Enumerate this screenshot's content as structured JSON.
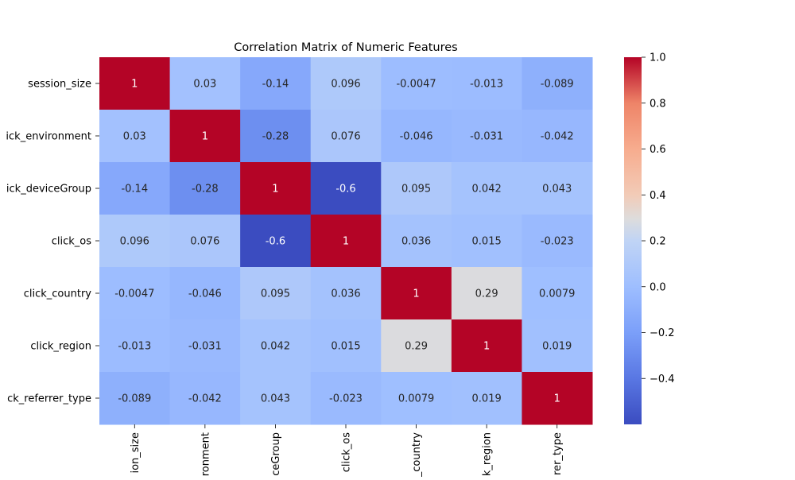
{
  "chart_data": {
    "type": "heatmap",
    "title": "Correlation Matrix of Numeric Features",
    "xlabel": "",
    "ylabel": "",
    "row_tick_labels": [
      "session_size",
      "ick_environment",
      "ick_deviceGroup",
      "click_os",
      "click_country",
      "click_region",
      "ck_referrer_type"
    ],
    "column_tick_labels": [
      "ion_size",
      "ronment",
      "ceGroup",
      "click_os",
      "_country",
      "k_region",
      "rer_type"
    ],
    "values": [
      [
        1,
        0.03,
        -0.14,
        0.096,
        -0.0047,
        -0.013,
        -0.089
      ],
      [
        0.03,
        1,
        -0.28,
        0.076,
        -0.046,
        -0.031,
        -0.042
      ],
      [
        -0.14,
        -0.28,
        1,
        -0.6,
        0.095,
        0.042,
        0.043
      ],
      [
        0.096,
        0.076,
        -0.6,
        1,
        0.036,
        0.015,
        -0.023
      ],
      [
        -0.0047,
        -0.046,
        0.095,
        0.036,
        1,
        0.29,
        0.0079
      ],
      [
        -0.013,
        -0.031,
        0.042,
        0.015,
        0.29,
        1,
        0.019
      ],
      [
        -0.089,
        -0.042,
        0.043,
        -0.023,
        0.0079,
        0.019,
        1
      ]
    ],
    "annotation_labels": [
      [
        "1",
        "0.03",
        "-0.14",
        "0.096",
        "-0.0047",
        "-0.013",
        "-0.089"
      ],
      [
        "0.03",
        "1",
        "-0.28",
        "0.076",
        "-0.046",
        "-0.031",
        "-0.042"
      ],
      [
        "-0.14",
        "-0.28",
        "1",
        "-0.6",
        "0.095",
        "0.042",
        "0.043"
      ],
      [
        "0.096",
        "0.076",
        "-0.6",
        "1",
        "0.036",
        "0.015",
        "-0.023"
      ],
      [
        "-0.0047",
        "-0.046",
        "0.095",
        "0.036",
        "1",
        "0.29",
        "0.0079"
      ],
      [
        "-0.013",
        "-0.031",
        "0.042",
        "0.015",
        "0.29",
        "1",
        "0.019"
      ],
      [
        "-0.089",
        "-0.042",
        "0.043",
        "-0.023",
        "0.0079",
        "0.019",
        "1"
      ]
    ],
    "colormap": "coolwarm",
    "vmin": -0.6,
    "vmax": 1.0,
    "colorbar_ticks": [
      1.0,
      0.8,
      0.6,
      0.4,
      0.2,
      0.0,
      -0.2,
      -0.4
    ],
    "colorbar_tick_labels": [
      "1.0",
      "0.8",
      "0.6",
      "0.4",
      "0.2",
      "0.0",
      "−0.2",
      "−0.4"
    ],
    "grid": false,
    "legend": "colorbar-right"
  }
}
